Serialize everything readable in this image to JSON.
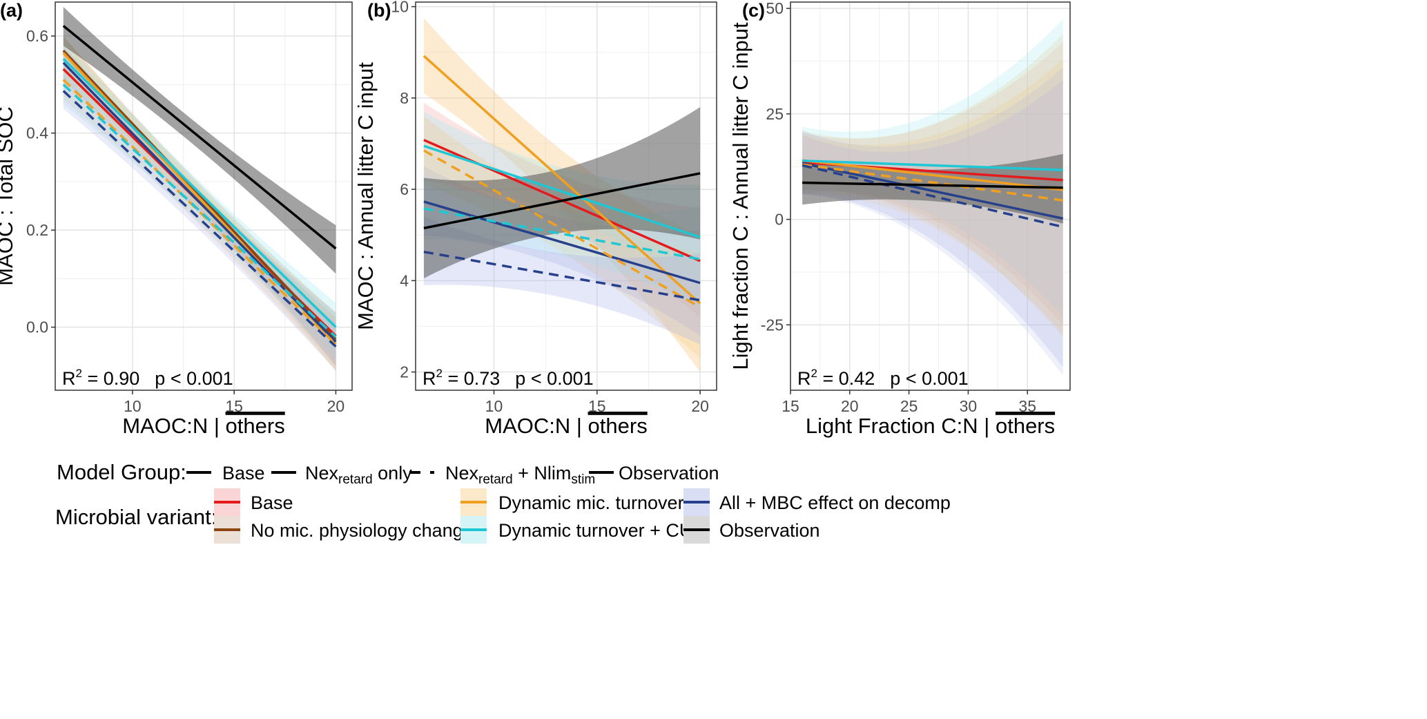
{
  "chart_data": [
    {
      "panel_label": "(a)",
      "type": "line",
      "xlabel": "MAOC:N | ",
      "xlabel_overline": "others",
      "ylabel": "MAOC : Total SOC",
      "xlim": [
        6.2,
        20.8
      ],
      "ylim": [
        -0.13,
        0.67
      ],
      "xticks": [
        10,
        15,
        20
      ],
      "yticks": [
        0.0,
        0.2,
        0.4,
        0.6
      ],
      "ytick_labels": [
        "0.0",
        "0.2",
        "0.4",
        "0.6"
      ],
      "stat_r2": "R2 = 0.90",
      "stat_p": "p < 0.001",
      "series": [
        {
          "name": "Observation",
          "group": "Observation",
          "variant": "Observation",
          "color": "#000000",
          "dashed": false,
          "x": [
            6.6,
            20.0
          ],
          "y": [
            0.621,
            0.162
          ],
          "band_lo": [
            0.58,
            0.11
          ],
          "band_hi": [
            0.66,
            0.21
          ],
          "band_color": "#555555",
          "band_opacity": 0.55
        },
        {
          "name": "Base",
          "group": "Base",
          "variant": "Base",
          "color": "#e41a1c",
          "dashed": false,
          "x": [
            6.6,
            20.0
          ],
          "y": [
            0.532,
            -0.018
          ],
          "band_lo": [
            0.5,
            -0.07
          ],
          "band_hi": [
            0.56,
            0.03
          ],
          "band_color": "#f4a6a6",
          "band_opacity": 0.3
        },
        {
          "name": "Base - No mic. physiology changes",
          "group": "Base",
          "variant": "No mic. physiology changes",
          "color": "#8b4513",
          "dashed": false,
          "x": [
            6.6,
            20.0
          ],
          "y": [
            0.57,
            -0.025
          ],
          "band_lo": [
            0.53,
            -0.08
          ],
          "band_hi": [
            0.6,
            0.03
          ],
          "band_color": "#c8a07a",
          "band_opacity": 0.3
        },
        {
          "name": "Nexretard only - Dynamic mic. turnover",
          "group": "Nexretard only",
          "variant": "Dynamic mic. turnover",
          "color": "#f0a020",
          "dashed": false,
          "x": [
            6.6,
            20.0
          ],
          "y": [
            0.565,
            -0.035
          ],
          "band_lo": [
            0.52,
            -0.09
          ],
          "band_hi": [
            0.6,
            0.02
          ],
          "band_color": "#f5c77a",
          "band_opacity": 0.3
        },
        {
          "name": "Nexretard only - Dynamic turnover + CUE",
          "group": "Nexretard only",
          "variant": "Dynamic turnover + CUE",
          "color": "#1fc7d4",
          "dashed": false,
          "x": [
            6.6,
            20.0
          ],
          "y": [
            0.553,
            0.0
          ],
          "band_lo": [
            0.51,
            -0.05
          ],
          "band_hi": [
            0.59,
            0.05
          ],
          "band_color": "#9fe8ee",
          "band_opacity": 0.3
        },
        {
          "name": "Nexretard only - All + MBC effect on decomp",
          "group": "Nexretard only",
          "variant": "All + MBC effect on decomp",
          "color": "#26408b",
          "dashed": false,
          "x": [
            6.6,
            20.0
          ],
          "y": [
            0.545,
            -0.03
          ],
          "band_lo": [
            0.51,
            -0.08
          ],
          "band_hi": [
            0.58,
            0.02
          ],
          "band_color": "#aab4e8",
          "band_opacity": 0.3
        },
        {
          "name": "Nexretard + Nlimstim - Dynamic mic. turnover",
          "group": "Nexretard + Nlimstim",
          "variant": "Dynamic mic. turnover",
          "color": "#f0a020",
          "dashed": true,
          "x": [
            6.6,
            20.0
          ],
          "y": [
            0.51,
            -0.035
          ],
          "band_lo": [
            0.47,
            -0.09
          ],
          "band_hi": [
            0.55,
            0.02
          ],
          "band_color": "#f5c77a",
          "band_opacity": 0.25
        },
        {
          "name": "Nexretard + Nlimstim - Dynamic turnover + CUE",
          "group": "Nexretard + Nlimstim",
          "variant": "Dynamic turnover + CUE",
          "color": "#1fc7d4",
          "dashed": true,
          "x": [
            6.6,
            20.0
          ],
          "y": [
            0.5,
            -0.02
          ],
          "band_lo": [
            0.46,
            -0.07
          ],
          "band_hi": [
            0.54,
            0.03
          ],
          "band_color": "#9fe8ee",
          "band_opacity": 0.25
        },
        {
          "name": "Nexretard + Nlimstim - All + MBC effect on decomp",
          "group": "Nexretard + Nlimstim",
          "variant": "All + MBC effect on decomp",
          "color": "#26408b",
          "dashed": true,
          "x": [
            6.6,
            20.0
          ],
          "y": [
            0.487,
            -0.04
          ],
          "band_lo": [
            0.45,
            -0.09
          ],
          "band_hi": [
            0.52,
            0.01
          ],
          "band_color": "#aab4e8",
          "band_opacity": 0.25
        }
      ]
    },
    {
      "panel_label": "(b)",
      "type": "line",
      "xlabel": "MAOC:N | ",
      "xlabel_overline": "others",
      "ylabel": "MAOC : Annual litter C input",
      "xlim": [
        6.2,
        20.8
      ],
      "ylim": [
        1.6,
        10.1
      ],
      "xticks": [
        10,
        15,
        20
      ],
      "yticks": [
        2,
        4,
        6,
        8,
        10
      ],
      "ytick_labels": [
        "2",
        "4",
        "6",
        "8",
        "10"
      ],
      "stat_r2": "R2 = 0.73",
      "stat_p": "p < 0.001",
      "series": [
        {
          "name": "Observation",
          "group": "Observation",
          "variant": "Observation",
          "color": "#000000",
          "dashed": false,
          "x": [
            6.6,
            20.0
          ],
          "y": [
            5.15,
            6.35
          ],
          "band_lo": [
            4.05,
            4.9
          ],
          "band_hi": [
            6.25,
            7.8
          ],
          "band_color": "#555555",
          "band_opacity": 0.55
        },
        {
          "name": "Base",
          "group": "Base",
          "variant": "Base",
          "color": "#e41a1c",
          "dashed": false,
          "x": [
            6.6,
            20.0
          ],
          "y": [
            7.08,
            4.43
          ],
          "band_lo": [
            6.2,
            3.2
          ],
          "band_hi": [
            7.9,
            5.6
          ],
          "band_color": "#f4a6a6",
          "band_opacity": 0.3
        },
        {
          "name": "Nexretard only - Dynamic mic. turnover",
          "group": "Nexretard only",
          "variant": "Dynamic mic. turnover",
          "color": "#f0a020",
          "dashed": false,
          "x": [
            6.6,
            20.0
          ],
          "y": [
            8.92,
            3.5
          ],
          "band_lo": [
            8.1,
            2.0
          ],
          "band_hi": [
            9.75,
            5.0
          ],
          "band_color": "#f5c77a",
          "band_opacity": 0.35
        },
        {
          "name": "Nexretard only - Dynamic turnover + CUE",
          "group": "Nexretard only",
          "variant": "Dynamic turnover + CUE",
          "color": "#1fc7d4",
          "dashed": false,
          "x": [
            6.6,
            20.0
          ],
          "y": [
            6.95,
            4.95
          ],
          "band_lo": [
            6.2,
            3.8
          ],
          "band_hi": [
            7.7,
            6.1
          ],
          "band_color": "#9fe8ee",
          "band_opacity": 0.3
        },
        {
          "name": "Nexretard only - All + MBC effect on decomp",
          "group": "Nexretard only",
          "variant": "All + MBC effect on decomp",
          "color": "#26408b",
          "dashed": false,
          "x": [
            6.6,
            20.0
          ],
          "y": [
            5.73,
            3.95
          ],
          "band_lo": [
            5.0,
            2.8
          ],
          "band_hi": [
            6.5,
            5.1
          ],
          "band_color": "#aab4e8",
          "band_opacity": 0.3
        },
        {
          "name": "Nexretard + Nlimstim - Dynamic mic. turnover",
          "group": "Nexretard + Nlimstim",
          "variant": "Dynamic mic. turnover",
          "color": "#f0a020",
          "dashed": true,
          "x": [
            6.6,
            20.0
          ],
          "y": [
            6.85,
            3.42
          ],
          "band_lo": [
            6.1,
            2.3
          ],
          "band_hi": [
            7.6,
            4.6
          ],
          "band_color": "#f5c77a",
          "band_opacity": 0.25
        },
        {
          "name": "Nexretard + Nlimstim - Dynamic turnover + CUE",
          "group": "Nexretard + Nlimstim",
          "variant": "Dynamic turnover + CUE",
          "color": "#1fc7d4",
          "dashed": true,
          "x": [
            6.6,
            20.0
          ],
          "y": [
            5.58,
            4.47
          ],
          "band_lo": [
            4.9,
            3.4
          ],
          "band_hi": [
            6.3,
            5.6
          ],
          "band_color": "#9fe8ee",
          "band_opacity": 0.25
        },
        {
          "name": "Nexretard + Nlimstim - All + MBC effect on decomp",
          "group": "Nexretard + Nlimstim",
          "variant": "All + MBC effect on decomp",
          "color": "#26408b",
          "dashed": true,
          "x": [
            6.6,
            20.0
          ],
          "y": [
            4.63,
            3.57
          ],
          "band_lo": [
            3.9,
            2.6
          ],
          "band_hi": [
            5.4,
            4.6
          ],
          "band_color": "#aab4e8",
          "band_opacity": 0.3
        }
      ]
    },
    {
      "panel_label": "(c)",
      "type": "line",
      "xlabel": "Light Fraction C:N | ",
      "xlabel_overline": "others",
      "ylabel": "Light fraction C : Annual litter C input",
      "xlim": [
        15.0,
        38.6
      ],
      "ylim": [
        -40.5,
        51.5
      ],
      "xticks": [
        15,
        20,
        25,
        30,
        35
      ],
      "yticks": [
        -25,
        0,
        25,
        50
      ],
      "ytick_labels": [
        "-25",
        "0",
        "25",
        "50"
      ],
      "stat_r2": "R2 = 0.42",
      "stat_p": "p < 0.001",
      "series": [
        {
          "name": "Observation",
          "group": "Observation",
          "variant": "Observation",
          "color": "#000000",
          "dashed": false,
          "x": [
            16.0,
            38.0
          ],
          "y": [
            8.7,
            7.5
          ],
          "band_lo": [
            3.5,
            -1.0
          ],
          "band_hi": [
            14.0,
            15.5
          ],
          "band_color": "#555555",
          "band_opacity": 0.55
        },
        {
          "name": "Base",
          "group": "Base",
          "variant": "Base",
          "color": "#e41a1c",
          "dashed": false,
          "x": [
            16.0,
            38.0
          ],
          "y": [
            13.5,
            9.3
          ],
          "band_lo": [
            6.5,
            -25.0
          ],
          "band_hi": [
            20.5,
            42.0
          ],
          "band_color": "#f4a6a6",
          "band_opacity": 0.25
        },
        {
          "name": "Nexretard only - Dynamic mic. turnover",
          "group": "Nexretard only",
          "variant": "Dynamic mic. turnover",
          "color": "#f0a020",
          "dashed": false,
          "x": [
            16.0,
            38.0
          ],
          "y": [
            14.0,
            7.0
          ],
          "band_lo": [
            7.0,
            -28.0
          ],
          "band_hi": [
            21.0,
            44.0
          ],
          "band_color": "#f5c77a",
          "band_opacity": 0.25
        },
        {
          "name": "Nexretard only - Dynamic turnover + CUE",
          "group": "Nexretard only",
          "variant": "Dynamic turnover + CUE",
          "color": "#1fc7d4",
          "dashed": false,
          "x": [
            16.0,
            38.0
          ],
          "y": [
            13.9,
            11.7
          ],
          "band_lo": [
            6.0,
            -23.0
          ],
          "band_hi": [
            22.0,
            47.5
          ],
          "band_color": "#9fe8ee",
          "band_opacity": 0.25
        },
        {
          "name": "Nexretard only - All + MBC effect on decomp",
          "group": "Nexretard only",
          "variant": "All + MBC effect on decomp",
          "color": "#26408b",
          "dashed": false,
          "x": [
            16.0,
            38.0
          ],
          "y": [
            13.3,
            0.2
          ],
          "band_lo": [
            6.0,
            -35.0
          ],
          "band_hi": [
            21.0,
            36.0
          ],
          "band_color": "#aab4e8",
          "band_opacity": 0.25
        },
        {
          "name": "Nexretard + Nlimstim - Dynamic mic. turnover",
          "group": "Nexretard + Nlimstim",
          "variant": "Dynamic mic. turnover",
          "color": "#f0a020",
          "dashed": true,
          "x": [
            16.0,
            38.0
          ],
          "y": [
            13.0,
            4.5
          ],
          "band_lo": [
            6.0,
            -27.0
          ],
          "band_hi": [
            20.0,
            38.0
          ],
          "band_color": "#f5c77a",
          "band_opacity": 0.2
        },
        {
          "name": "Nexretard + Nlimstim - All + MBC effect on decomp",
          "group": "Nexretard + Nlimstim",
          "variant": "All + MBC effect on decomp",
          "color": "#26408b",
          "dashed": true,
          "x": [
            16.0,
            38.0
          ],
          "y": [
            12.8,
            -1.8
          ],
          "band_lo": [
            6.0,
            -37.0
          ],
          "band_hi": [
            20.0,
            33.0
          ],
          "band_color": "#aab4e8",
          "band_opacity": 0.2
        }
      ]
    }
  ],
  "legend": {
    "group_title": "Model Group:",
    "group_items": [
      {
        "label": "Base",
        "style": "solid"
      },
      {
        "label_main": "Nex",
        "label_sub": "retard",
        "label_tail": " only",
        "style": "solid"
      },
      {
        "label_main": "Nex",
        "label_sub": "retard",
        "label_mid": " + Nlim",
        "label_sub2": "stim",
        "style": "dashed"
      },
      {
        "label": "Observation",
        "style": "solid"
      }
    ],
    "variant_title": "Microbial variant:",
    "variant_items": [
      {
        "label": "Base",
        "color": "#e41a1c",
        "fill": "#fbd5d5"
      },
      {
        "label": "No mic. physiology changes",
        "color": "#8b4513",
        "fill": "#ecdfd5"
      },
      {
        "label": "Dynamic mic. turnover",
        "color": "#f0a020",
        "fill": "#fbe9c9"
      },
      {
        "label": "Dynamic turnover + CUE",
        "color": "#1fc7d4",
        "fill": "#d4f4f7"
      },
      {
        "label": "All + MBC effect on decomp",
        "color": "#26408b",
        "fill": "#d9def5"
      },
      {
        "label": "Observation",
        "color": "#000000",
        "fill": "#d9d9d9"
      }
    ]
  }
}
